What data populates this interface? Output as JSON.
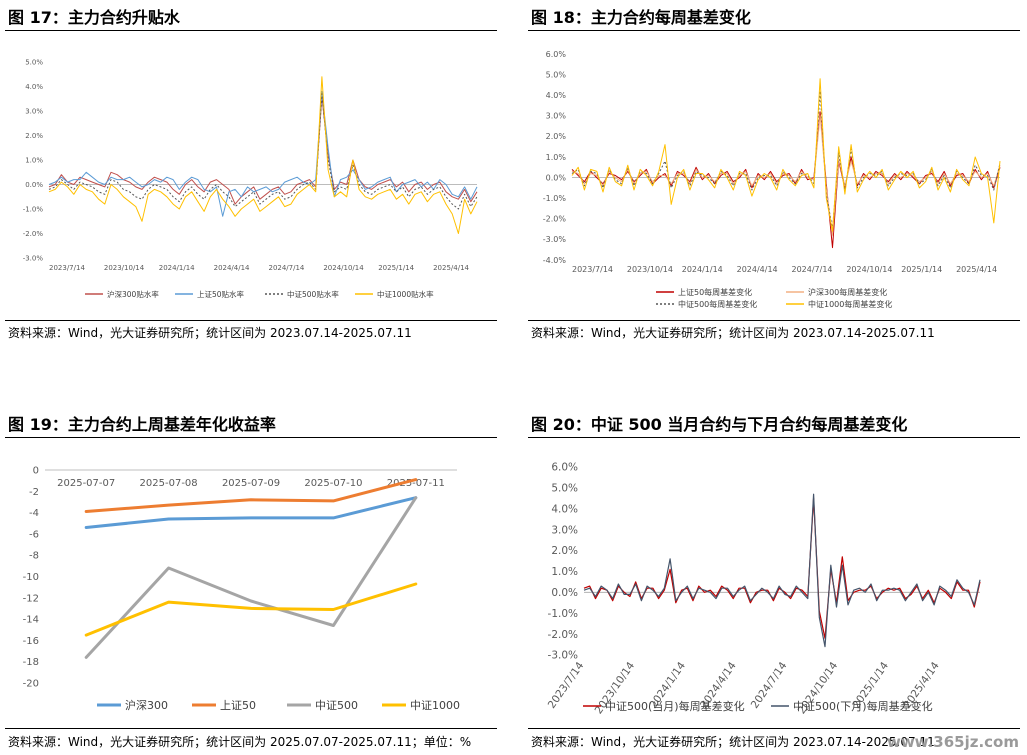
{
  "panels": [
    {
      "title": "图 17：主力合约升贴水",
      "source": "资料来源：Wind，光大证券研究所；统计区间为 2023.07.14-2025.07.11"
    },
    {
      "title": "图 18：主力合约每周基差变化",
      "source": "资料来源：Wind，光大证券研究所；统计区间为 2023.07.14-2025.07.11"
    },
    {
      "title": "图 19：主力合约上周基差年化收益率",
      "source": "资料来源：Wind，光大证券研究所；统计区间为 2025.07.07-2025.07.11；单位：%"
    },
    {
      "title": "图 20：中证 500 当月合约与下月合约每周基差变化",
      "source": "资料来源：Wind，光大证券研究所；统计区间为 2023.07.14-2025.07.11"
    }
  ],
  "watermark": "www.365jz.com",
  "chart_data": [
    {
      "type": "line",
      "x_ticks": [
        "2023/7/14",
        "2023/10/14",
        "2024/1/14",
        "2024/4/14",
        "2024/7/14",
        "2024/10/14",
        "2025/1/14",
        "2025/4/14"
      ],
      "ylim": [
        -3.0,
        5.0
      ],
      "y_ticks": [
        "-3.0%",
        "-2.0%",
        "-1.0%",
        "0.0%",
        "1.0%",
        "2.0%",
        "3.0%",
        "4.0%",
        "5.0%"
      ],
      "legend": "bottom",
      "grid": false,
      "series": [
        {
          "name": "沪深300贴水率",
          "color": "#c0504d",
          "dash": "",
          "values": [
            -0.1,
            0.0,
            0.4,
            0.1,
            0.0,
            0.3,
            0.2,
            0.1,
            0.0,
            -0.1,
            0.5,
            0.4,
            0.2,
            0.1,
            -0.1,
            -0.2,
            0.1,
            0.3,
            0.2,
            0.1,
            -0.2,
            -0.4,
            0.0,
            0.2,
            -0.1,
            -0.3,
            0.1,
            0.2,
            0.0,
            -0.2,
            -0.8,
            -0.5,
            -0.3,
            -0.1,
            -0.6,
            -0.4,
            -0.2,
            -0.1,
            -0.4,
            -0.3,
            0.0,
            0.1,
            0.2,
            -0.1,
            3.6,
            1.2,
            -0.2,
            0.1,
            0.0,
            1.0,
            0.2,
            -0.1,
            -0.2,
            0.0,
            0.1,
            0.2,
            -0.1,
            0.1,
            -0.3,
            0.0,
            0.1,
            -0.2,
            0.0,
            0.1,
            -0.3,
            -0.5,
            -0.6,
            -0.2,
            -0.7,
            -0.3
          ]
        },
        {
          "name": "上证50贴水率",
          "color": "#5b9bd5",
          "dash": "",
          "values": [
            0.0,
            0.1,
            0.3,
            0.1,
            0.2,
            0.2,
            0.5,
            0.3,
            0.1,
            0.0,
            0.3,
            0.2,
            0.2,
            0.3,
            0.1,
            -0.1,
            0.0,
            0.2,
            0.1,
            0.3,
            0.2,
            -0.2,
            0.1,
            0.3,
            0.2,
            -0.2,
            -0.3,
            -0.1,
            -1.3,
            -0.3,
            -0.2,
            -0.5,
            -0.1,
            -0.3,
            -0.2,
            -0.1,
            -0.3,
            -0.2,
            0.1,
            0.2,
            0.3,
            0.1,
            0.0,
            0.2,
            3.8,
            1.5,
            -0.5,
            0.2,
            0.3,
            0.6,
            0.2,
            -0.2,
            -0.1,
            0.1,
            0.2,
            0.3,
            -0.3,
            0.0,
            0.1,
            0.2,
            -0.1,
            0.1,
            -0.2,
            0.2,
            0.0,
            -0.4,
            -0.5,
            -0.1,
            -0.6,
            -0.1
          ]
        },
        {
          "name": "中证500贴水率",
          "color": "#555555",
          "dash": "2,2",
          "values": [
            -0.2,
            -0.1,
            0.2,
            0.0,
            -0.2,
            0.1,
            0.0,
            -0.1,
            -0.3,
            -0.4,
            0.2,
            0.1,
            -0.2,
            -0.3,
            -0.5,
            -0.6,
            -0.2,
            0.0,
            -0.1,
            -0.2,
            -0.5,
            -0.7,
            -0.3,
            -0.1,
            -0.4,
            -0.6,
            -0.2,
            0.0,
            -0.3,
            -0.5,
            -0.9,
            -0.7,
            -0.5,
            -0.3,
            -0.8,
            -0.6,
            -0.4,
            -0.3,
            -0.6,
            -0.5,
            -0.2,
            0.0,
            0.1,
            -0.2,
            3.7,
            1.0,
            -0.3,
            -0.1,
            -0.2,
            0.8,
            0.0,
            -0.3,
            -0.4,
            -0.2,
            -0.1,
            0.0,
            -0.3,
            -0.1,
            -0.5,
            -0.2,
            -0.1,
            -0.4,
            -0.2,
            -0.1,
            -0.5,
            -0.8,
            -1.0,
            -0.4,
            -0.9,
            -0.5
          ]
        },
        {
          "name": "中证1000贴水率",
          "color": "#ffc000",
          "dash": "",
          "values": [
            -0.3,
            -0.2,
            0.1,
            -0.1,
            -0.4,
            0.0,
            -0.2,
            -0.3,
            -0.6,
            -0.8,
            0.0,
            -0.2,
            -0.5,
            -0.7,
            -0.9,
            -1.5,
            -0.4,
            -0.2,
            -0.3,
            -0.5,
            -0.8,
            -1.0,
            -0.5,
            -0.3,
            -0.7,
            -1.1,
            -0.5,
            -0.2,
            -0.6,
            -0.9,
            -1.3,
            -1.0,
            -0.8,
            -0.6,
            -1.1,
            -0.9,
            -0.7,
            -0.5,
            -0.9,
            -0.8,
            -0.4,
            -0.2,
            0.0,
            -0.3,
            4.4,
            0.6,
            -0.5,
            -0.3,
            -0.5,
            1.0,
            -0.2,
            -0.5,
            -0.6,
            -0.4,
            -0.3,
            -0.2,
            -0.6,
            -0.4,
            -0.8,
            -0.4,
            -0.3,
            -0.7,
            -0.4,
            -0.3,
            -0.8,
            -1.2,
            -2.0,
            -0.6,
            -1.2,
            -0.7
          ]
        }
      ]
    },
    {
      "type": "line",
      "x_ticks": [
        "2023/7/14",
        "2023/10/14",
        "2024/1/14",
        "2024/4/14",
        "2024/7/14",
        "2024/10/14",
        "2025/1/14",
        "2025/4/14"
      ],
      "ylim": [
        -4.0,
        6.0
      ],
      "y_ticks": [
        "-4.0%",
        "-3.0%",
        "-2.0%",
        "-1.0%",
        "0.0%",
        "1.0%",
        "2.0%",
        "3.0%",
        "4.0%",
        "5.0%",
        "6.0%"
      ],
      "legend": "bottom",
      "grid": false,
      "series": [
        {
          "name": "上证50每周基差变化",
          "color": "#c00000",
          "dash": "",
          "values": [
            0.4,
            0.1,
            -0.2,
            0.3,
            0.0,
            -0.3,
            0.2,
            0.1,
            -0.1,
            0.3,
            -0.2,
            0.1,
            0.4,
            -0.3,
            0.0,
            0.2,
            -0.4,
            0.3,
            0.1,
            -0.2,
            0.5,
            -0.1,
            0.2,
            -0.3,
            0.1,
            0.3,
            -0.2,
            0.0,
            0.4,
            -0.5,
            0.2,
            -0.1,
            0.3,
            -0.2,
            0.1,
            0.2,
            -0.3,
            0.4,
            -0.1,
            0.0,
            3.2,
            -0.3,
            -3.4,
            0.8,
            -0.5,
            1.0,
            -0.4,
            0.2,
            -0.1,
            0.3,
            0.1,
            -0.2,
            0.2,
            -0.1,
            0.3,
            0.0,
            -0.3,
            0.1,
            0.2,
            -0.2,
            0.3,
            -0.4,
            0.1,
            0.2,
            -0.3,
            0.4,
            -0.1,
            0.3,
            -0.5,
            0.5
          ]
        },
        {
          "name": "沪深300每周基差变化",
          "color": "#f4b183",
          "dash": "",
          "values": [
            0.3,
            0.2,
            -0.3,
            0.2,
            0.1,
            -0.4,
            0.3,
            0.0,
            -0.2,
            0.4,
            -0.3,
            0.2,
            0.3,
            -0.2,
            0.1,
            0.1,
            -0.3,
            0.2,
            0.2,
            -0.3,
            0.4,
            0.0,
            0.1,
            -0.2,
            0.2,
            0.2,
            -0.3,
            0.1,
            0.3,
            -0.4,
            0.1,
            0.0,
            0.2,
            -0.3,
            0.2,
            0.1,
            -0.2,
            0.3,
            0.0,
            -0.1,
            3.0,
            -0.5,
            -2.8,
            0.9,
            -0.4,
            0.8,
            -0.3,
            0.1,
            0.0,
            0.2,
            0.2,
            -0.3,
            0.1,
            0.0,
            0.2,
            0.1,
            -0.2,
            0.0,
            0.3,
            -0.3,
            0.2,
            -0.3,
            0.2,
            0.1,
            -0.2,
            0.3,
            0.0,
            0.2,
            -0.4,
            0.6
          ]
        },
        {
          "name": "中证500每周基差变化",
          "color": "#555555",
          "dash": "2,2",
          "values": [
            0.2,
            0.4,
            -0.4,
            0.3,
            0.2,
            -0.5,
            0.4,
            -0.1,
            -0.3,
            0.5,
            -0.4,
            0.3,
            0.2,
            -0.3,
            0.2,
            0.8,
            -0.5,
            0.1,
            0.3,
            -0.4,
            0.3,
            0.1,
            0.0,
            -0.3,
            0.3,
            0.1,
            -0.4,
            0.2,
            0.2,
            -0.6,
            0.0,
            0.1,
            0.1,
            -0.4,
            0.3,
            0.0,
            -0.3,
            0.2,
            0.1,
            -0.3,
            4.2,
            -0.8,
            -2.5,
            1.2,
            -0.6,
            1.4,
            -0.5,
            0.0,
            0.2,
            0.1,
            0.3,
            -0.4,
            0.0,
            0.2,
            0.1,
            0.2,
            -0.3,
            -0.1,
            0.4,
            -0.4,
            0.1,
            -0.5,
            0.3,
            0.0,
            -0.3,
            0.6,
            0.1,
            0.1,
            -0.6,
            0.7
          ]
        },
        {
          "name": "中证1000每周基差变化",
          "color": "#ffc000",
          "dash": "",
          "values": [
            0.1,
            0.5,
            -0.6,
            0.4,
            0.3,
            -0.7,
            0.5,
            -0.2,
            -0.4,
            0.6,
            -0.6,
            0.4,
            0.1,
            -0.4,
            0.3,
            1.6,
            -1.3,
            0.0,
            0.4,
            -0.6,
            0.2,
            0.2,
            -0.1,
            -0.5,
            0.4,
            0.0,
            -0.6,
            0.3,
            0.1,
            -0.9,
            -0.1,
            0.2,
            0.0,
            -0.6,
            0.4,
            -0.1,
            -0.4,
            0.1,
            0.2,
            -0.5,
            4.8,
            -1.0,
            -2.6,
            1.5,
            -0.8,
            1.6,
            -0.7,
            -0.1,
            0.3,
            0.0,
            0.4,
            -0.6,
            -0.1,
            0.3,
            0.0,
            0.3,
            -0.5,
            -0.2,
            0.5,
            -0.6,
            0.0,
            -0.7,
            0.4,
            -0.1,
            -0.4,
            1.0,
            0.2,
            0.0,
            -2.2,
            0.8
          ]
        }
      ]
    },
    {
      "type": "line",
      "categories": [
        "2025-07-07",
        "2025-07-08",
        "2025-07-09",
        "2025-07-10",
        "2025-07-11"
      ],
      "ylim": [
        -20,
        0
      ],
      "y_ticks": [
        "0",
        "-2",
        "-4",
        "-6",
        "-8",
        "-10",
        "-12",
        "-14",
        "-16",
        "-18",
        "-20"
      ],
      "legend": "bottom",
      "grid": false,
      "series": [
        {
          "name": "沪深300",
          "color": "#5b9bd5",
          "values": [
            -5.4,
            -4.6,
            -4.5,
            -4.5,
            -2.6
          ]
        },
        {
          "name": "上证50",
          "color": "#ed7d31",
          "values": [
            -3.9,
            -3.3,
            -2.8,
            -2.9,
            -0.9
          ]
        },
        {
          "name": "中证500",
          "color": "#a5a5a5",
          "values": [
            -17.6,
            -9.2,
            -12.3,
            -14.6,
            -2.6
          ]
        },
        {
          "name": "中证1000",
          "color": "#ffc000",
          "values": [
            -15.5,
            -12.4,
            -13.0,
            -13.1,
            -10.7
          ]
        }
      ]
    },
    {
      "type": "line",
      "x_ticks": [
        "2023/7/14",
        "2023/10/14",
        "2024/1/14",
        "2024/4/14",
        "2024/7/14",
        "2024/10/14",
        "2025/1/14",
        "2025/4/14"
      ],
      "ylim": [
        -3.0,
        6.0
      ],
      "y_ticks": [
        "-3.0%",
        "-2.0%",
        "-1.0%",
        "0.0%",
        "1.0%",
        "2.0%",
        "3.0%",
        "4.0%",
        "5.0%",
        "6.0%"
      ],
      "legend": "bottom",
      "grid": false,
      "series": [
        {
          "name": "中证500(当月)每周基差变化",
          "color": "#c00000",
          "dash": "",
          "values": [
            0.2,
            0.3,
            -0.3,
            0.2,
            0.1,
            -0.4,
            0.3,
            0.0,
            -0.2,
            0.5,
            -0.3,
            0.2,
            0.2,
            -0.3,
            0.1,
            1.1,
            -0.5,
            0.1,
            0.2,
            -0.4,
            0.3,
            0.0,
            0.1,
            -0.2,
            0.3,
            0.1,
            -0.3,
            0.2,
            0.2,
            -0.5,
            0.0,
            0.1,
            0.1,
            -0.4,
            0.2,
            0.0,
            -0.3,
            0.2,
            0.1,
            -0.2,
            4.5,
            -0.9,
            -2.2,
            1.1,
            -0.5,
            1.7,
            -0.4,
            0.0,
            0.1,
            0.1,
            0.3,
            -0.3,
            0.0,
            0.2,
            0.1,
            0.2,
            -0.3,
            -0.1,
            0.3,
            -0.3,
            0.1,
            -0.5,
            0.2,
            0.0,
            -0.3,
            0.5,
            0.1,
            0.1,
            -0.7,
            0.5
          ]
        },
        {
          "name": "中证500(下月)每周基差变化",
          "color": "#44546a",
          "dash": "",
          "values": [
            0.1,
            0.2,
            -0.2,
            0.3,
            0.1,
            -0.3,
            0.4,
            -0.1,
            -0.1,
            0.4,
            -0.4,
            0.3,
            0.1,
            -0.2,
            0.2,
            1.6,
            -0.4,
            0.0,
            0.3,
            -0.3,
            0.2,
            0.1,
            0.0,
            -0.3,
            0.2,
            0.2,
            -0.2,
            0.1,
            0.3,
            -0.4,
            -0.1,
            0.2,
            0.0,
            -0.3,
            0.3,
            -0.1,
            -0.2,
            0.3,
            0.0,
            -0.3,
            4.7,
            -1.2,
            -2.6,
            1.3,
            -0.7,
            1.3,
            -0.6,
            0.1,
            0.2,
            0.0,
            0.4,
            -0.4,
            0.1,
            0.1,
            0.2,
            0.1,
            -0.4,
            0.0,
            0.4,
            -0.4,
            0.0,
            -0.6,
            0.3,
            0.1,
            -0.2,
            0.6,
            0.2,
            0.0,
            -0.6,
            0.6
          ]
        }
      ]
    }
  ]
}
